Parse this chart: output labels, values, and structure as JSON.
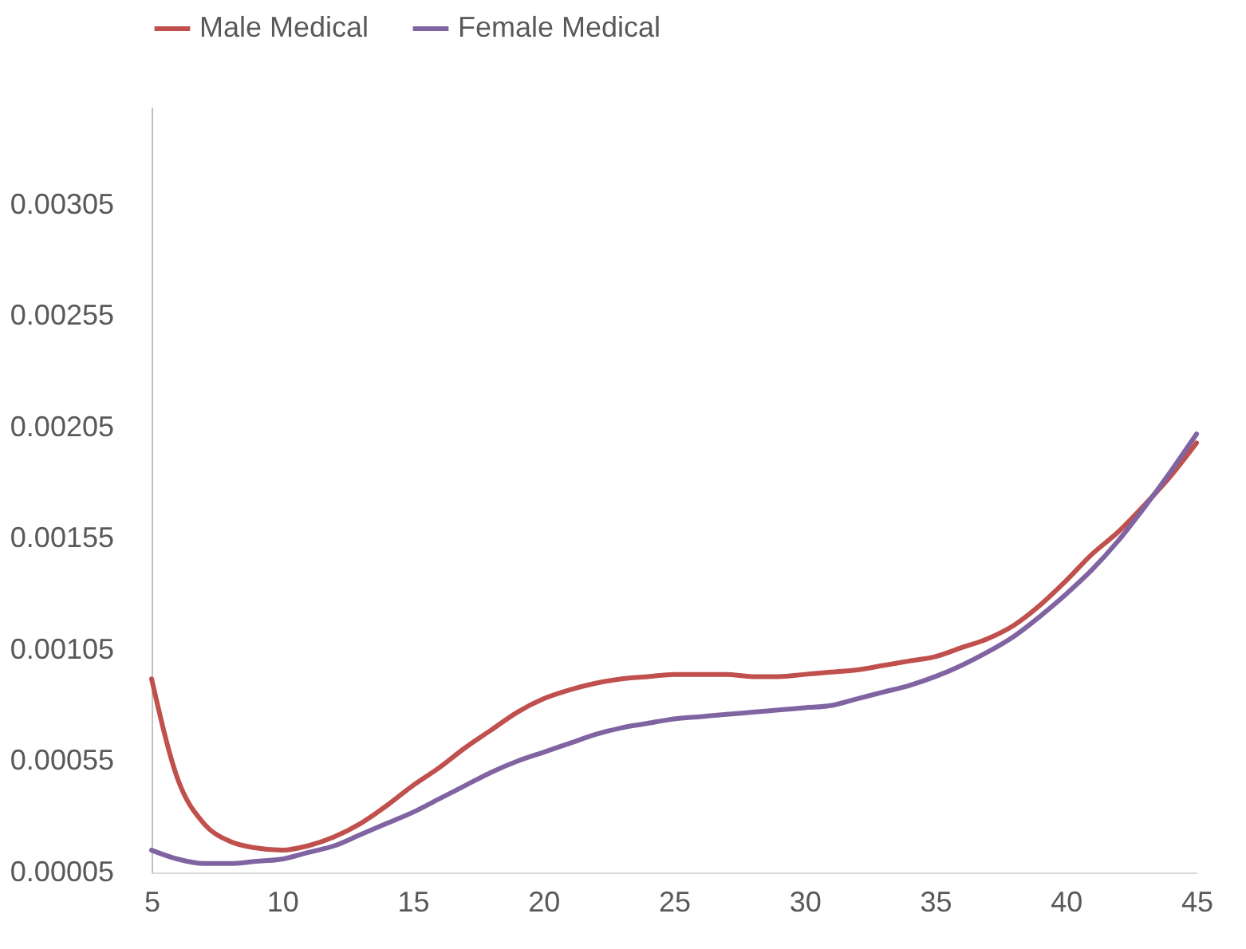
{
  "chart_data": {
    "type": "line",
    "x": [
      5,
      6,
      7,
      8,
      9,
      10,
      11,
      12,
      13,
      14,
      15,
      16,
      17,
      18,
      19,
      20,
      21,
      22,
      23,
      24,
      25,
      26,
      27,
      28,
      29,
      30,
      31,
      32,
      33,
      34,
      35,
      36,
      37,
      38,
      39,
      40,
      41,
      42,
      43,
      44,
      45
    ],
    "series": [
      {
        "name": "Male Medical",
        "color": "#c0504d",
        "values": [
          0.00092,
          0.00047,
          0.00027,
          0.00019,
          0.00016,
          0.00015,
          0.00017,
          0.00021,
          0.00027,
          0.00035,
          0.00044,
          0.00052,
          0.00061,
          0.00069,
          0.00077,
          0.00083,
          0.00087,
          0.0009,
          0.00092,
          0.00093,
          0.00094,
          0.00094,
          0.00094,
          0.00093,
          0.00093,
          0.00094,
          0.00095,
          0.00096,
          0.00098,
          0.001,
          0.00102,
          0.00106,
          0.0011,
          0.00116,
          0.00125,
          0.00136,
          0.00148,
          0.00158,
          0.0017,
          0.00183,
          0.00198
        ]
      },
      {
        "name": "Female Medical",
        "color": "#8064a2",
        "values": [
          0.00015,
          0.00011,
          9e-05,
          9e-05,
          0.0001,
          0.00011,
          0.00014,
          0.00017,
          0.00022,
          0.00027,
          0.00032,
          0.00038,
          0.00044,
          0.0005,
          0.00055,
          0.00059,
          0.00063,
          0.00067,
          0.0007,
          0.00072,
          0.00074,
          0.00075,
          0.00076,
          0.00077,
          0.00078,
          0.00079,
          0.0008,
          0.00083,
          0.00086,
          0.00089,
          0.00093,
          0.00098,
          0.00104,
          0.00111,
          0.0012,
          0.0013,
          0.00141,
          0.00154,
          0.00169,
          0.00185,
          0.00202
        ]
      }
    ],
    "xlim": [
      5,
      45
    ],
    "xticks": [
      5,
      10,
      15,
      20,
      25,
      30,
      35,
      40,
      45
    ],
    "ylim": [
      5e-05,
      0.00349
    ],
    "yticks": [
      {
        "value": 5e-05,
        "label": "0.00005"
      },
      0.00055,
      0.00105,
      0.00155,
      0.00205,
      0.00255,
      0.00305
    ],
    "grid": false,
    "legend": "top",
    "marker": "none",
    "line_style": "solid"
  }
}
